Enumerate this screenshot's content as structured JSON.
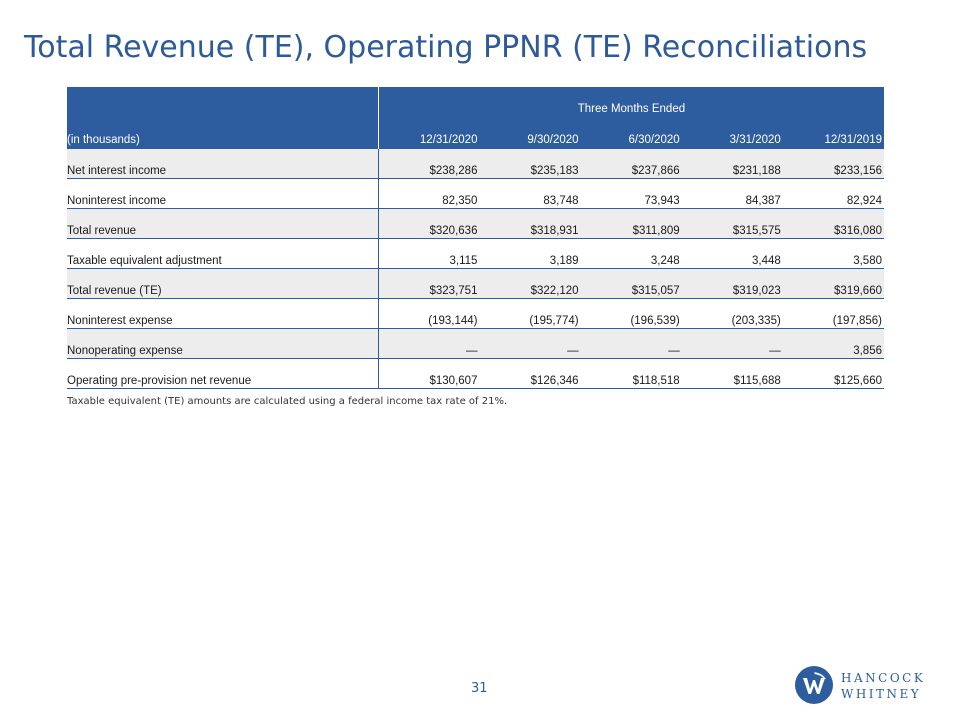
{
  "title": "Total Revenue (TE), Operating PPNR (TE) Reconciliations",
  "table": {
    "group_header": "Three Months Ended",
    "unit_label": "(in thousands)",
    "columns": [
      "12/31/2020",
      "9/30/2020",
      "6/30/2020",
      "3/31/2020",
      "12/31/2019"
    ],
    "rows": [
      {
        "label": "Net interest income",
        "values": [
          "$238,286",
          "$235,183",
          "$237,866",
          "$231,188",
          "$233,156"
        ]
      },
      {
        "label": "Noninterest income",
        "values": [
          "82,350",
          "83,748",
          "73,943",
          "84,387",
          "82,924"
        ]
      },
      {
        "label": "Total revenue",
        "values": [
          "$320,636",
          "$318,931",
          "$311,809",
          "$315,575",
          "$316,080"
        ]
      },
      {
        "label": "Taxable equivalent adjustment",
        "values": [
          "3,115",
          "3,189",
          "3,248",
          "3,448",
          "3,580"
        ]
      },
      {
        "label": "Total revenue (TE)",
        "values": [
          "$323,751",
          "$322,120",
          "$315,057",
          "$319,023",
          "$319,660"
        ]
      },
      {
        "label": "Noninterest expense",
        "values": [
          "(193,144)",
          "(195,774)",
          "(196,539)",
          "(203,335)",
          "(197,856)"
        ]
      },
      {
        "label": "Nonoperating expense",
        "values": [
          "—",
          "—",
          "—",
          "—",
          "3,856"
        ]
      },
      {
        "label": "Operating pre-provision net revenue",
        "values": [
          "$130,607",
          "$126,346",
          "$118,518",
          "$115,688",
          "$125,660"
        ]
      }
    ]
  },
  "footnote": "Taxable equivalent (TE) amounts are calculated using a federal income tax rate of 21%.",
  "page_number": "31",
  "logo": {
    "line1": "HANCOCK",
    "line2": "WHITNEY",
    "mark_letter": "W"
  },
  "colors": {
    "brand_blue": "#2e5d9f",
    "title_blue": "#2e5a99",
    "row_shade": "#ededee"
  }
}
